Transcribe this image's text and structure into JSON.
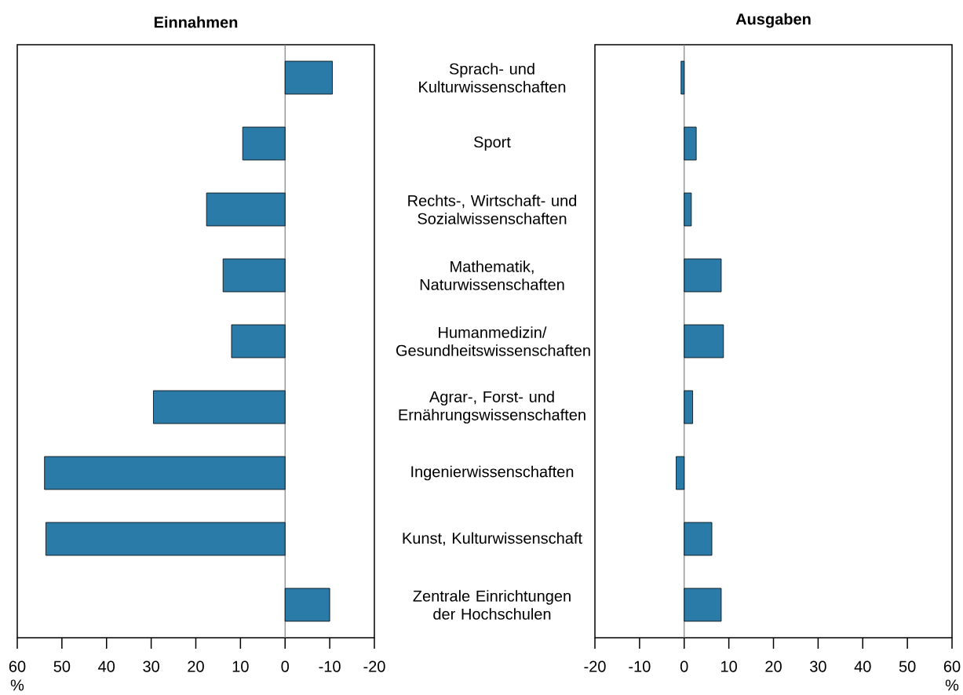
{
  "chart_data": [
    {
      "type": "bar",
      "orientation": "horizontal",
      "title": "Einnahmen",
      "xlabel": "%",
      "categories": [
        "Sprach- und Kulturwissenschaften",
        "Sport",
        "Rechts-, Wirtschaft- und Sozialwissenschaften",
        "Mathematik, Naturwissenschaften",
        "Humanmedizin/Gesundheitswissenschaften",
        "Agrar-, Forst- und Ernährungswissenschaften",
        "Ingenierwissenschaften",
        "Kunst, Kulturwissenschaft",
        "Zentrale Einrichtungen der Hochschulen"
      ],
      "values": [
        -10.6,
        9.5,
        17.6,
        13.9,
        12.0,
        29.5,
        53.9,
        53.6,
        -10.0
      ],
      "color": "#2b7ba8",
      "xlim": [
        60,
        -20
      ],
      "xticks": [
        60,
        50,
        40,
        30,
        20,
        10,
        0,
        -10,
        -20
      ],
      "ref_lines": [
        {
          "axis": "x",
          "value": 0,
          "color": "#808080"
        }
      ]
    },
    {
      "type": "bar",
      "orientation": "horizontal",
      "title": "Ausgaben",
      "xlabel": "%",
      "tick_labels": "x",
      "categories": [
        null,
        null,
        null,
        null,
        null,
        null,
        null,
        null,
        null
      ],
      "values": [
        -0.7,
        2.7,
        1.6,
        8.3,
        8.8,
        1.9,
        -1.8,
        6.2,
        8.3
      ],
      "color": "#2b7ba8",
      "xlim": [
        -20,
        60
      ],
      "xticks": [
        -20,
        -10,
        0,
        10,
        20,
        30,
        40,
        50,
        60
      ],
      "ref_lines": [
        {
          "axis": "x",
          "value": 0,
          "color": "#808080"
        }
      ]
    }
  ]
}
